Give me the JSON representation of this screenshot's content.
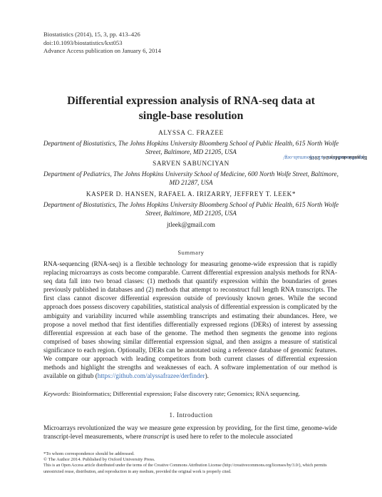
{
  "journal": {
    "citation": "Biostatistics (2014), 15, 3, pp. 413–426",
    "doi": "doi:10.1093/biostatistics/kxt053",
    "access": "Advance Access publication on January 6, 2014"
  },
  "title_line1": "Differential expression analysis of RNA-seq data at",
  "title_line2": "single-base resolution",
  "authors": [
    {
      "name": "ALYSSA C. FRAZEE",
      "affiliation": "Department of Biostatistics, The Johns Hopkins University Bloomberg School of Public Health, 615 North Wolfe Street, Baltimore, MD 21205, USA"
    },
    {
      "name": "SARVEN SABUNCIYAN",
      "affiliation": "Department of Pediatrics, The Johns Hopkins University School of Medicine, 600 North Wolfe Street, Baltimore, MD 21287, USA"
    },
    {
      "name": "KASPER D. HANSEN, RAFAEL A. IRIZARRY, JEFFREY T. LEEK*",
      "affiliation": "Department of Biostatistics, The Johns Hopkins University Bloomberg School of Public Health, 615 North Wolfe Street, Baltimore, MD 21205, USA"
    }
  ],
  "email": "jtleek@gmail.com",
  "summary_heading": "Summary",
  "abstract_text": "RNA-sequencing (RNA-seq) is a flexible technology for measuring genome-wide expression that is rapidly replacing microarrays as costs become comparable. Current differential expression analysis methods for RNA-seq data fall into two broad classes: (1) methods that quantify expression within the boundaries of genes previously published in databases and (2) methods that attempt to reconstruct full length RNA transcripts. The first class cannot discover differential expression outside of previously known genes. While the second approach does possess discovery capabilities, statistical analysis of differential expression is complicated by the ambiguity and variability incurred while assembling transcripts and estimating their abundances. Here, we propose a novel method that first identifies differentially expressed regions (DERs) of interest by assessing differential expression at each base of the genome. The method then segments the genome into regions comprised of bases showing similar differential expression signal, and then assigns a measure of statistical significance to each region. Optionally, DERs can be annotated using a reference database of genomic features. We compare our approach with leading competitors from both current classes of differential expression methods and highlight the strengths and weaknesses of each. A software implementation of our method is available on github (",
  "abstract_link": "https://github.com/alyssafrazee/derfinder",
  "abstract_end": ").",
  "keywords_label": "Keywords:",
  "keywords": "Bioinformatics; Differential expression; False discovery rate; Genomics; RNA sequencing.",
  "section_heading": "1. Introduction",
  "intro_part1": "Microarrays revolutionized the way we measure gene expression by providing, for the first time, genome-wide transcript-level measurements, where ",
  "intro_em": "transcript",
  "intro_part2": " is used here to refer to the molecule associated",
  "footnotes": {
    "corresp": "*To whom correspondence should be addressed.",
    "copyright": "© The Author 2014. Published by Oxford University Press.",
    "license": "This is an Open Access article distributed under the terms of the Creative Commons Attribution License (http://creativecommons.org/licenses/by/3.0/), which permits unrestricted reuse, distribution, and reproduction in any medium, provided the original work is properly cited."
  },
  "sidebar": {
    "prefix": "Downloaded from ",
    "link": "http://biostatistics.oxfordjournals.org/",
    "suffix": " by guest on May 24, 2016"
  }
}
